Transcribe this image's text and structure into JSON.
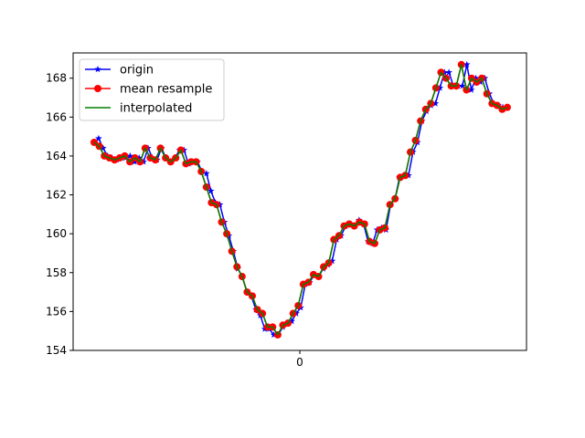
{
  "chart_data": {
    "type": "line",
    "title": "",
    "xlabel": "",
    "ylabel": "",
    "x_tick_labels": [
      "0"
    ],
    "y_ticks": [
      154,
      156,
      158,
      160,
      162,
      164,
      166,
      168
    ],
    "y_tick_labels": [
      "154",
      "156",
      "158",
      "160",
      "162",
      "164",
      "166",
      "168"
    ],
    "ylim": [
      154,
      169.3
    ],
    "grid": false,
    "legend_position": "top-left",
    "series": [
      {
        "name": "origin",
        "color": "#0000ff",
        "marker": "star",
        "values": [
          164.7,
          164.9,
          164.4,
          164.0,
          163.9,
          163.8,
          163.9,
          163.9,
          164.0,
          163.7,
          163.9,
          163.7,
          164.4,
          163.9,
          163.8,
          164.4,
          163.9,
          163.7,
          163.9,
          164.3,
          164.3,
          163.6,
          163.7,
          163.7,
          163.2,
          163.1,
          162.2,
          161.6,
          161.5,
          160.6,
          159.9,
          159.1,
          158.2,
          157.8,
          157.0,
          156.8,
          156.1,
          155.8,
          155.1,
          155.1,
          154.8,
          154.8,
          155.2,
          155.4,
          155.5,
          155.9,
          156.2,
          157.4,
          157.5,
          157.9,
          157.8,
          158.2,
          158.4,
          158.6,
          159.7,
          159.9,
          160.4,
          160.5,
          160.4,
          160.7,
          160.5,
          159.6,
          159.5,
          160.2,
          160.3,
          160.2,
          161.5,
          161.8,
          162.9,
          163.0,
          163.0,
          164.2,
          164.7,
          165.8,
          166.3,
          166.6,
          166.7,
          167.5,
          168.3,
          168.3,
          167.6,
          167.6,
          167.6,
          168.7,
          167.4,
          168.0,
          167.8,
          168.0,
          167.2,
          166.7,
          166.6,
          166.5,
          166.5
        ]
      },
      {
        "name": "mean resample",
        "color": "#ff0000",
        "marker": "circle",
        "values": [
          164.7,
          164.5,
          164.0,
          163.9,
          163.8,
          163.9,
          164.0,
          163.7,
          163.9,
          163.7,
          164.4,
          163.9,
          163.8,
          164.4,
          163.9,
          163.7,
          163.9,
          164.3,
          163.6,
          163.7,
          163.7,
          163.2,
          162.4,
          161.6,
          161.5,
          160.6,
          160.0,
          159.1,
          158.3,
          157.8,
          157.0,
          156.8,
          156.1,
          155.9,
          155.2,
          155.2,
          154.8,
          155.3,
          155.4,
          155.9,
          156.3,
          157.4,
          157.5,
          157.9,
          157.8,
          158.3,
          158.5,
          159.7,
          159.9,
          160.4,
          160.5,
          160.4,
          160.6,
          160.5,
          159.6,
          159.5,
          160.2,
          160.3,
          161.5,
          161.8,
          162.9,
          163.0,
          164.2,
          164.8,
          165.8,
          166.4,
          166.7,
          167.5,
          168.3,
          168.0,
          167.6,
          167.6,
          168.7,
          167.4,
          168.0,
          167.8,
          168.0,
          167.2,
          166.7,
          166.6,
          166.4,
          166.5
        ]
      },
      {
        "name": "interpolated",
        "color": "#008000",
        "marker": "none",
        "values": [
          164.7,
          164.5,
          164.0,
          163.9,
          163.8,
          163.9,
          164.0,
          163.7,
          163.9,
          163.7,
          164.4,
          163.9,
          163.8,
          164.4,
          163.9,
          163.7,
          163.9,
          164.3,
          163.6,
          163.7,
          163.7,
          163.2,
          162.4,
          161.6,
          161.5,
          160.6,
          160.0,
          159.1,
          158.3,
          157.8,
          157.0,
          156.8,
          156.1,
          155.9,
          155.2,
          155.2,
          154.8,
          155.3,
          155.4,
          155.9,
          156.3,
          157.4,
          157.5,
          157.9,
          157.8,
          158.3,
          158.5,
          159.7,
          159.9,
          160.4,
          160.5,
          160.4,
          160.6,
          160.5,
          159.6,
          159.5,
          160.2,
          160.3,
          161.5,
          161.8,
          162.9,
          163.0,
          164.2,
          164.8,
          165.8,
          166.4,
          166.7,
          167.5,
          168.3,
          168.0,
          167.6,
          167.6,
          168.7,
          167.4,
          168.0,
          167.8,
          168.0,
          167.2,
          166.7,
          166.6,
          166.4,
          166.5
        ]
      }
    ]
  }
}
